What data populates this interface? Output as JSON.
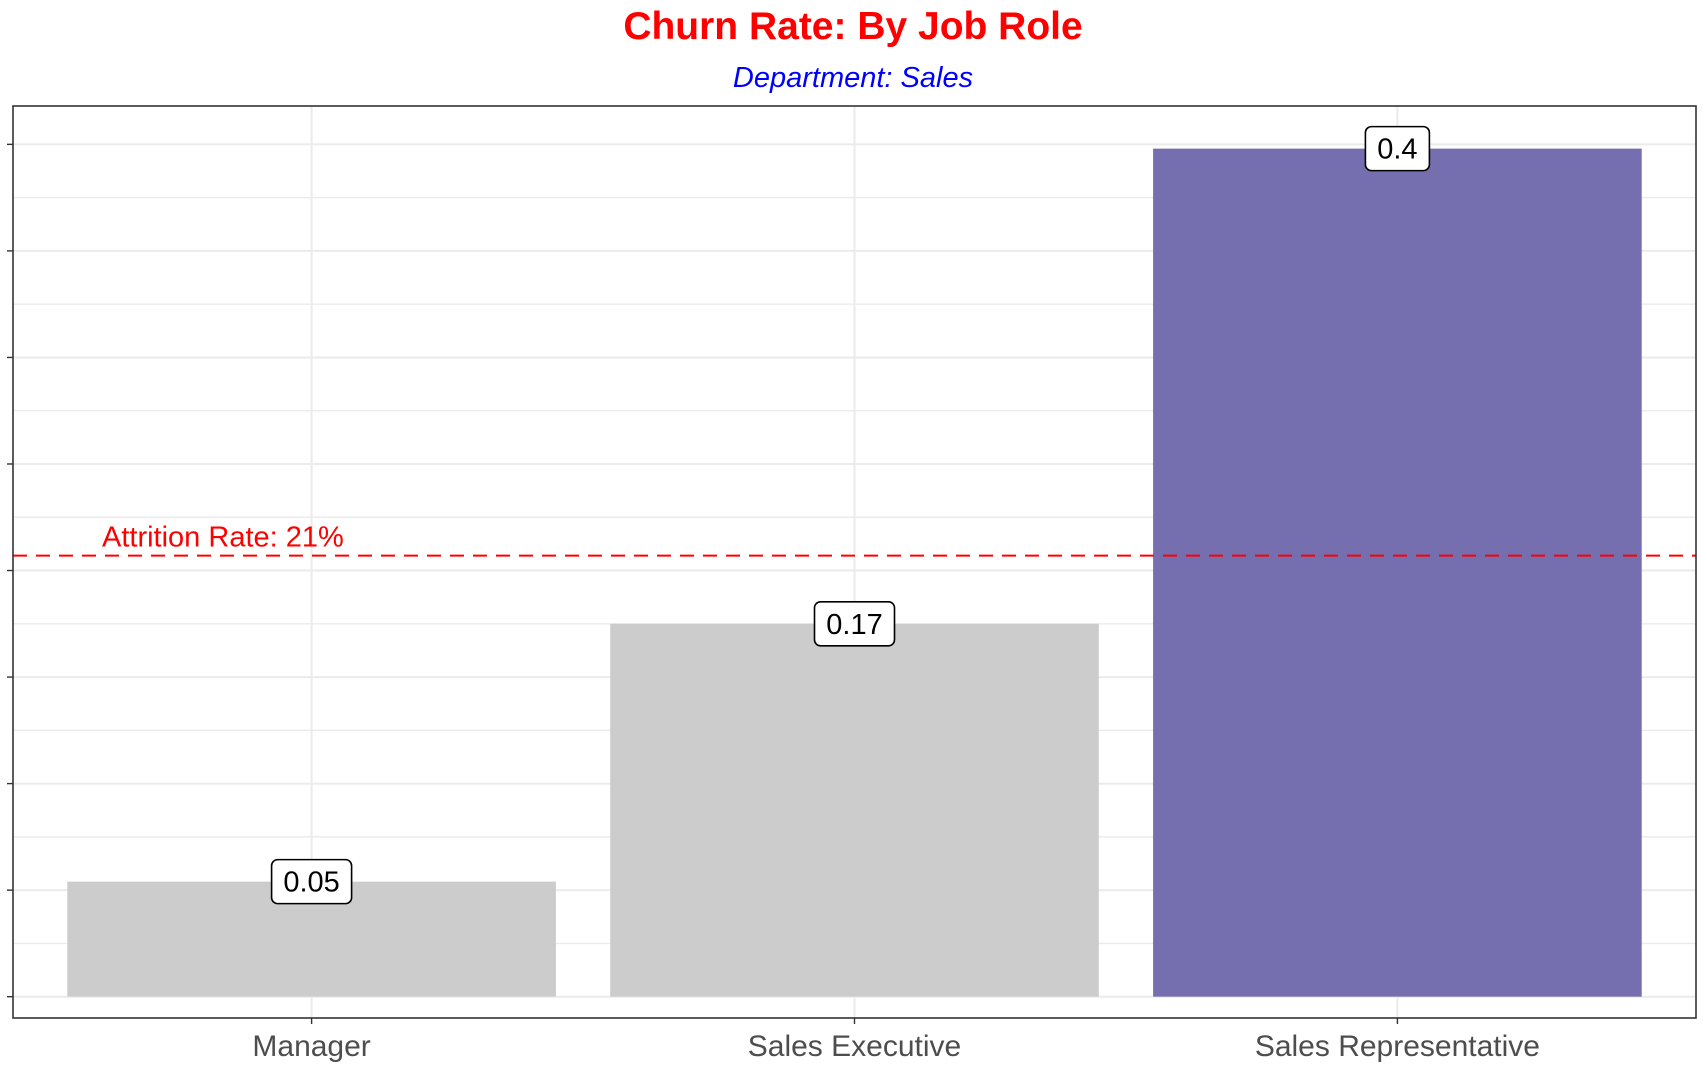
{
  "chart_data": {
    "type": "bar",
    "title": "Churn Rate: By Job Role",
    "subtitle": "Department: Sales",
    "categories": [
      "Manager",
      "Sales Executive",
      "Sales Representative"
    ],
    "values": [
      0.054,
      0.175,
      0.398
    ],
    "value_labels": [
      "0.05",
      "0.17",
      "0.4"
    ],
    "ylim": [
      -0.01,
      0.418
    ],
    "grid": true,
    "legend": "none",
    "reference_line": {
      "value": 0.207,
      "label": "Attrition Rate: 21%",
      "style": "dashed",
      "color": "#ff0000"
    },
    "colors": {
      "title": "#ff0000",
      "subtitle": "#0000ff",
      "bar_default": "#cccccc",
      "bar_highlight": "#756fb0"
    },
    "highlight_index": 2
  }
}
